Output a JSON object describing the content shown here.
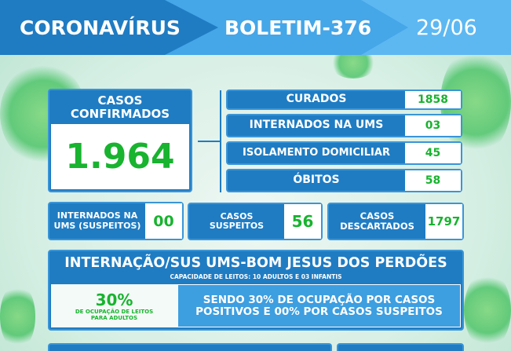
{
  "header": {
    "title": "CORONAVÍRUS",
    "bulletin": "BOLETIM-376",
    "date": "29/06"
  },
  "confirmed": {
    "label": "CASOS CONFIRMADOS",
    "value": "1.964"
  },
  "stats": [
    {
      "label": "CURADOS",
      "value": "1858"
    },
    {
      "label": "INTERNADOS NA UMS",
      "value": "03"
    },
    {
      "label": "ISOLAMENTO DOMICILIAR",
      "value": "45"
    },
    {
      "label": "ÓBITOS",
      "value": "58"
    }
  ],
  "secondary": [
    {
      "label": "INTERNADOS NA UMS (SUSPEITOS)",
      "value": "00"
    },
    {
      "label": "CASOS SUSPEITOS",
      "value": "56"
    },
    {
      "label": "CASOS DESCARTADOS",
      "value": "1797"
    }
  ],
  "hospital": {
    "title": "INTERNAÇÃO/SUS UMS-BOM JESUS DOS PERDÕES",
    "subtitle": "CAPACIDADE DE LEITOS: 10 ADULTOS E 03 INFANTIS",
    "occupancy": "30%",
    "occupancy_label": "DE OCUPAÇÃO DE LEITOS PARA ADULTOS",
    "detail": "SENDO 30% DE OCUPAÇÃO POR CASOS POSITIVOS E 00% POR CASOS SUSPEITOS"
  },
  "colors": {
    "dark_blue": "#1f7cc3",
    "light_blue": "#45a6e8",
    "green": "#18b32f"
  }
}
